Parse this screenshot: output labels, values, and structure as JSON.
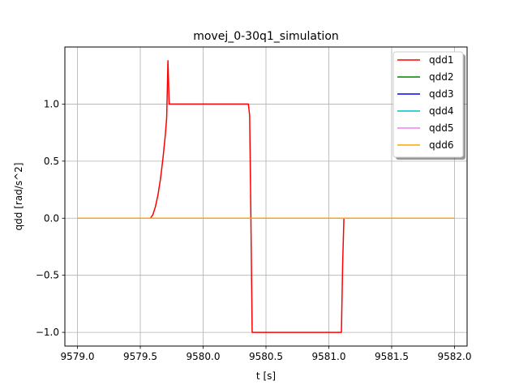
{
  "chart_data": {
    "type": "line",
    "title": "movej_0-30q1_simulation",
    "xlabel": "t [s]",
    "ylabel": "qdd [rad/s^2]",
    "xlim": [
      9578.9,
      9582.1
    ],
    "ylim": [
      -1.12,
      1.5
    ],
    "xticks": [
      9579.0,
      9579.5,
      9580.0,
      9580.5,
      9581.0,
      9581.5,
      9582.0
    ],
    "xtick_labels": [
      "9579.0",
      "9579.5",
      "9580.0",
      "9580.5",
      "9581.0",
      "9581.5",
      "9582.0"
    ],
    "yticks": [
      -1.0,
      -0.5,
      0.0,
      0.5,
      1.0
    ],
    "ytick_labels": [
      "−1.0",
      "−0.5",
      "0.0",
      "0.5",
      "1.0"
    ],
    "grid": true,
    "legend_position": "top-right",
    "series": [
      {
        "name": "qdd1",
        "color": "#ff0000",
        "points": [
          [
            9579.0,
            0.0
          ],
          [
            9579.58,
            0.0
          ],
          [
            9579.6,
            0.03
          ],
          [
            9579.62,
            0.1
          ],
          [
            9579.64,
            0.2
          ],
          [
            9579.66,
            0.34
          ],
          [
            9579.68,
            0.52
          ],
          [
            9579.7,
            0.74
          ],
          [
            9579.71,
            0.88
          ],
          [
            9579.72,
            1.38
          ],
          [
            9579.73,
            1.0
          ],
          [
            9580.36,
            1.0
          ],
          [
            9580.37,
            0.9
          ],
          [
            9580.38,
            0.0
          ],
          [
            9580.39,
            -1.0
          ],
          [
            9581.1,
            -1.0
          ],
          [
            9581.11,
            -0.4
          ],
          [
            9581.12,
            0.0
          ],
          [
            9582.0,
            0.0
          ]
        ]
      },
      {
        "name": "qdd2",
        "color": "#008000",
        "points": [
          [
            9579.0,
            0.0
          ],
          [
            9582.0,
            0.0
          ]
        ]
      },
      {
        "name": "qdd3",
        "color": "#0000ff",
        "points": [
          [
            9579.0,
            0.0
          ],
          [
            9582.0,
            0.0
          ]
        ]
      },
      {
        "name": "qdd4",
        "color": "#00bfbf",
        "points": [
          [
            9579.0,
            0.0
          ],
          [
            9582.0,
            0.0
          ]
        ]
      },
      {
        "name": "qdd5",
        "color": "#ee82ee",
        "points": [
          [
            9579.0,
            0.0
          ],
          [
            9582.0,
            0.0
          ]
        ]
      },
      {
        "name": "qdd6",
        "color": "#ffa500",
        "points": [
          [
            9579.0,
            0.0
          ],
          [
            9582.0,
            0.0
          ]
        ]
      }
    ]
  }
}
